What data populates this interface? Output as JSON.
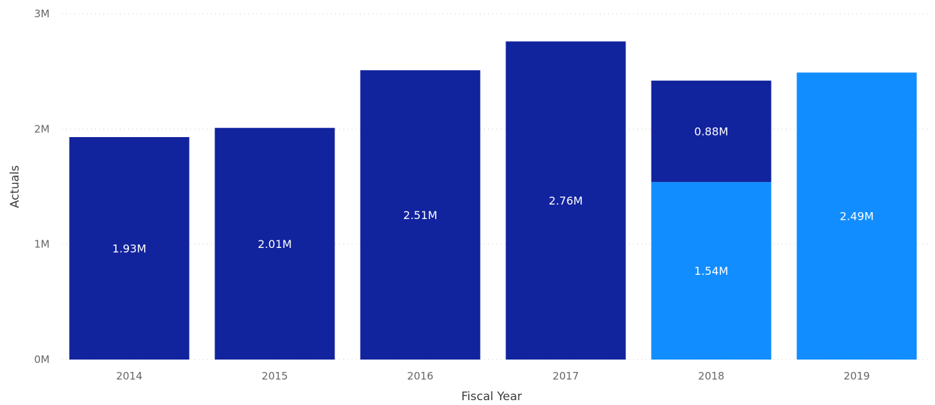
{
  "chart_data": {
    "type": "bar",
    "stacked": true,
    "categories": [
      "2014",
      "2015",
      "2016",
      "2017",
      "2018",
      "2019"
    ],
    "series": [
      {
        "color": "#12239E",
        "values": [
          1.93,
          2.01,
          2.51,
          2.76,
          0.88,
          null
        ],
        "labels": [
          "1.93M",
          "2.01M",
          "2.51M",
          "2.76M",
          "0.88M",
          ""
        ]
      },
      {
        "color": "#118DFF",
        "values": [
          null,
          null,
          null,
          null,
          1.54,
          2.49
        ],
        "labels": [
          "",
          "",
          "",
          "",
          "1.54M",
          "2.49M"
        ]
      }
    ],
    "stack_order": [
      1,
      0
    ],
    "unit": "M",
    "xlabel": "Fiscal Year",
    "ylabel": "Actuals",
    "ylim": [
      0,
      3
    ],
    "yticks": [
      {
        "value": 0,
        "label": "0M"
      },
      {
        "value": 1,
        "label": "1M"
      },
      {
        "value": 2,
        "label": "2M"
      },
      {
        "value": 3,
        "label": "3M"
      }
    ],
    "grid": true,
    "legend": "none"
  }
}
